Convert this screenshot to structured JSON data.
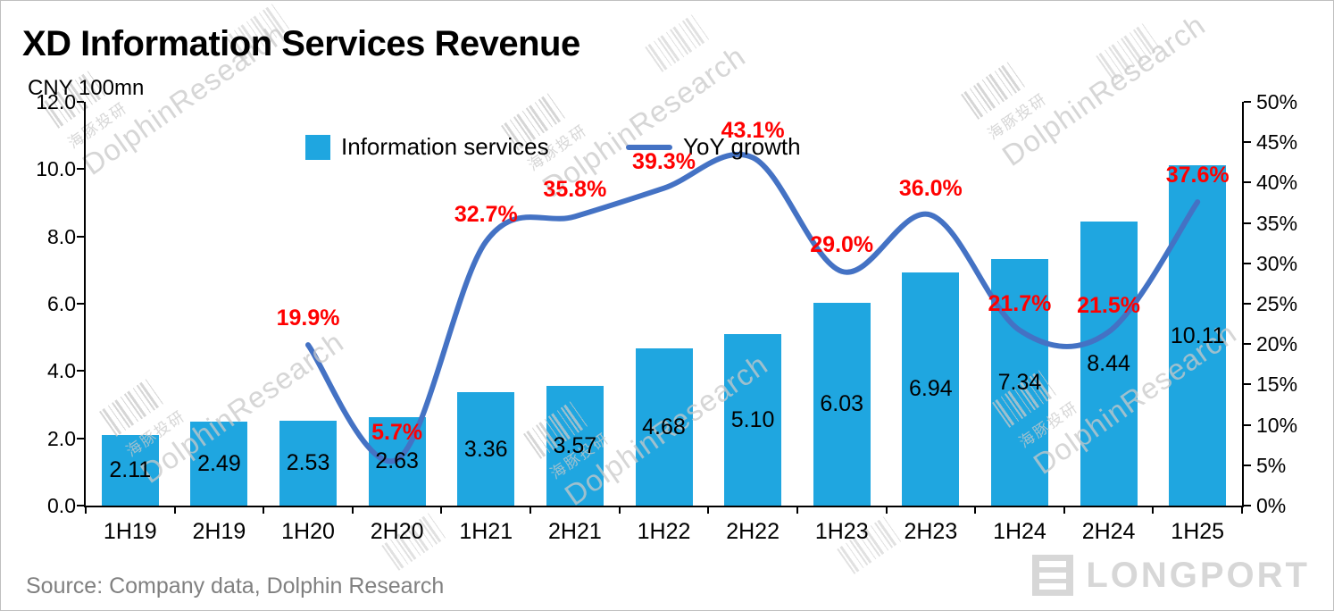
{
  "title": "XD Information Services Revenue",
  "source": "Source: Company data, Dolphin Research",
  "logo_text": "LONGPORT",
  "watermark": {
    "latin": "DolphinResearch",
    "cjk": "海豚投研"
  },
  "colors": {
    "bar": "#1FA6E0",
    "line": "#4472C4",
    "value_label": "#000000",
    "growth_label": "#FF0000",
    "axis": "#000000",
    "source_text": "#808080",
    "watermark": "#C9C9C9",
    "logo": "#D7D7D7"
  },
  "legend": [
    {
      "label": "Information services",
      "type": "bar"
    },
    {
      "label": "YoY growth",
      "type": "line"
    }
  ],
  "chart_data": {
    "type": "bar+line",
    "title": "XD Information Services Revenue",
    "categories": [
      "1H19",
      "2H19",
      "1H20",
      "2H20",
      "1H21",
      "2H21",
      "1H22",
      "2H22",
      "1H23",
      "2H23",
      "1H24",
      "2H24",
      "1H25"
    ],
    "series": [
      {
        "name": "Information services",
        "type": "bar",
        "axis": "left",
        "values": [
          2.11,
          2.49,
          2.53,
          2.63,
          3.36,
          3.57,
          4.68,
          5.1,
          6.03,
          6.94,
          7.34,
          8.44,
          10.11
        ],
        "labels": [
          "2.11",
          "2.49",
          "2.53",
          "2.63",
          "3.36",
          "3.57",
          "4.68",
          "5.10",
          "6.03",
          "6.94",
          "7.34",
          "8.44",
          "10.11"
        ]
      },
      {
        "name": "YoY growth",
        "type": "line",
        "axis": "right",
        "values": [
          null,
          null,
          19.9,
          5.7,
          32.7,
          35.8,
          39.3,
          43.1,
          29.0,
          36.0,
          21.7,
          21.5,
          37.6
        ],
        "labels": [
          null,
          null,
          "19.9%",
          "5.7%",
          "32.7%",
          "35.8%",
          "39.3%",
          "43.1%",
          "29.0%",
          "36.0%",
          "21.7%",
          "21.5%",
          "37.6%"
        ]
      }
    ],
    "left_axis": {
      "label": "CNY 100mn",
      "min": 0,
      "max": 12,
      "step": 2,
      "tick_labels": [
        "12.0",
        "10.0",
        "8.0",
        "6.0",
        "4.0",
        "2.0",
        "0.0"
      ]
    },
    "right_axis": {
      "min": 0,
      "max": 50,
      "step": 5,
      "tick_labels": [
        "50%",
        "45%",
        "40%",
        "35%",
        "30%",
        "25%",
        "20%",
        "15%",
        "10%",
        "5%",
        "0%"
      ]
    },
    "grid": false,
    "legend_position": "top-center"
  }
}
